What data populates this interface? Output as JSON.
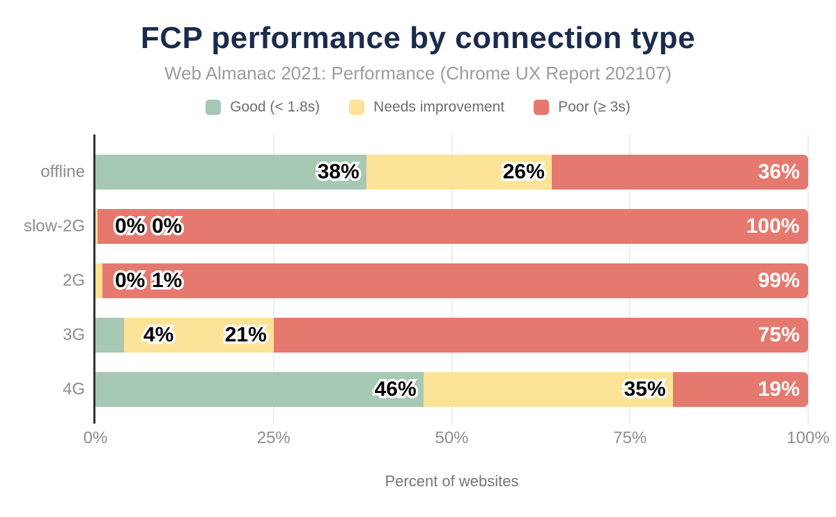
{
  "title": "FCP performance by connection type",
  "subtitle": "Web Almanac 2021: Performance (Chrome UX Report 202107)",
  "chart_data": {
    "type": "bar",
    "stacked": true,
    "orientation": "horizontal",
    "title": "FCP performance by connection type",
    "subtitle": "Web Almanac 2021: Performance (Chrome UX Report 202107)",
    "xlabel": "Percent of websites",
    "ylabel": "",
    "categories": [
      "offline",
      "slow-2G",
      "2G",
      "3G",
      "4G"
    ],
    "series": [
      {
        "name": "Good (< 1.8s)",
        "color": "#a6c8b5",
        "values": [
          38,
          0,
          0,
          4,
          46
        ],
        "render_widths_pct": [
          38,
          0,
          0,
          4,
          46
        ]
      },
      {
        "name": "Needs improvement",
        "color": "#fce398",
        "values": [
          26,
          0,
          1,
          21,
          35
        ],
        "render_widths_pct": [
          26,
          0.3,
          1,
          21,
          35
        ]
      },
      {
        "name": "Poor (≥ 3s)",
        "color": "#e5796f",
        "values": [
          36,
          100,
          99,
          75,
          19
        ],
        "render_widths_pct": [
          36,
          99.7,
          99,
          75,
          19
        ]
      }
    ],
    "value_label_suffix": "%",
    "xlim": [
      0,
      100
    ],
    "x_ticks": [
      "0%",
      "25%",
      "50%",
      "75%",
      "100%"
    ],
    "x_tick_values": [
      0,
      25,
      50,
      75,
      100
    ],
    "grid": "vertical",
    "legend_position": "top"
  },
  "colors": {
    "title": "#1b2b4b",
    "subtitle": "#9c9c9c",
    "legend_text": "#6e6e6e",
    "axis_labels": "#8d8d8d",
    "axis_line": "#303030",
    "gridline": "#ededed",
    "value_label_dark": "#000000",
    "value_label_light": "#ffffff"
  }
}
